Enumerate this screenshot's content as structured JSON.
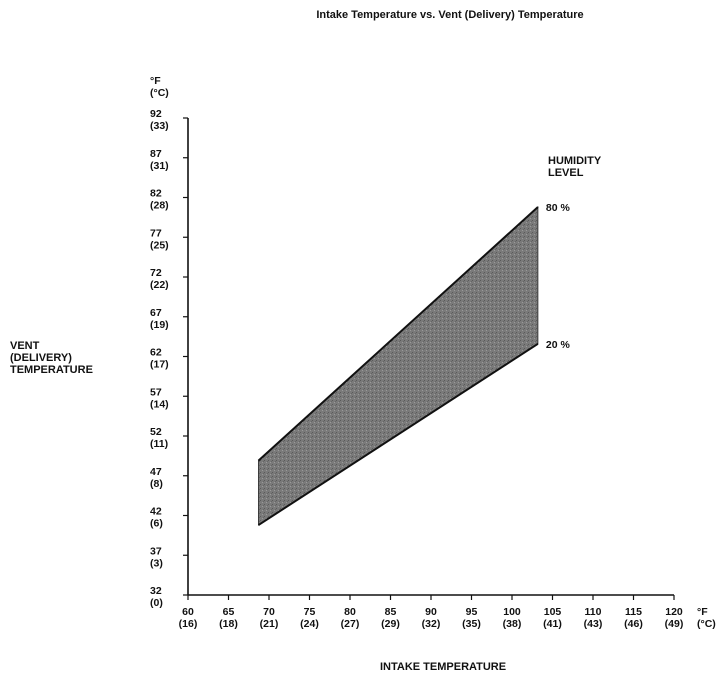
{
  "chart_data": {
    "type": "area",
    "title": "Intake Temperature vs. Vent (Delivery) Temperature",
    "xlabel": "INTAKE TEMPERATURE",
    "ylabel_lines": [
      "VENT",
      "(DELIVERY)",
      "TEMPERATURE"
    ],
    "x_unit_lines": [
      "°F",
      "(°C)"
    ],
    "y_unit_lines": [
      "°F",
      "(°C)"
    ],
    "xlim": [
      60,
      120
    ],
    "ylim": [
      32,
      92
    ],
    "x_ticks": [
      {
        "f": "60",
        "c": "(16)"
      },
      {
        "f": "65",
        "c": "(18)"
      },
      {
        "f": "70",
        "c": "(21)"
      },
      {
        "f": "75",
        "c": "(24)"
      },
      {
        "f": "80",
        "c": "(27)"
      },
      {
        "f": "85",
        "c": "(29)"
      },
      {
        "f": "90",
        "c": "(32)"
      },
      {
        "f": "95",
        "c": "(35)"
      },
      {
        "f": "100",
        "c": "(38)"
      },
      {
        "f": "105",
        "c": "(41)"
      },
      {
        "f": "110",
        "c": "(43)"
      },
      {
        "f": "115",
        "c": "(46)"
      },
      {
        "f": "120",
        "c": "(49)"
      }
    ],
    "y_ticks": [
      {
        "f": "32",
        "c": "(0)"
      },
      {
        "f": "37",
        "c": "(3)"
      },
      {
        "f": "42",
        "c": "(6)"
      },
      {
        "f": "47",
        "c": "(8)"
      },
      {
        "f": "52",
        "c": "(11)"
      },
      {
        "f": "57",
        "c": "(14)"
      },
      {
        "f": "62",
        "c": "(17)"
      },
      {
        "f": "67",
        "c": "(19)"
      },
      {
        "f": "72",
        "c": "(22)"
      },
      {
        "f": "77",
        "c": "(25)"
      },
      {
        "f": "82",
        "c": "(28)"
      },
      {
        "f": "87",
        "c": "(31)"
      },
      {
        "f": "92",
        "c": "(33)"
      }
    ],
    "legend_title_lines": [
      "HUMIDITY",
      "LEVEL"
    ],
    "series": [
      {
        "name": "80 %",
        "x": [
          68.7,
          103.2
        ],
        "y": [
          48.9,
          80.8
        ]
      },
      {
        "name": "20 %",
        "x": [
          68.7,
          103.2
        ],
        "y": [
          40.8,
          63.6
        ]
      }
    ],
    "band_color": "#7a7a7a",
    "line_color": "#111111",
    "grid": false
  }
}
